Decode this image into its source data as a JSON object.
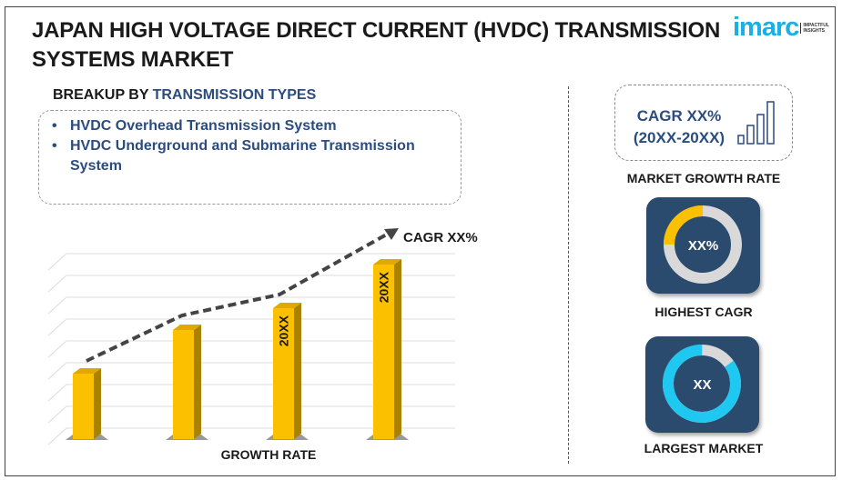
{
  "header": {
    "title": "JAPAN HIGH VOLTAGE DIRECT CURRENT (HVDC) TRANSMISSION SYSTEMS MARKET",
    "logo_word": "imarc",
    "logo_tagline": "IMPACTFUL INSIGHTS"
  },
  "breakup": {
    "prefix": "BREAKUP BY ",
    "highlight": "TRANSMISSION TYPES",
    "items": [
      "HVDC Overhead Transmission System",
      "HVDC Underground and Submarine Transmission System"
    ]
  },
  "right": {
    "cagr_line1": "CAGR XX%",
    "cagr_line2": "(20XX-20XX)",
    "market_growth_label": "MARKET GROWTH RATE",
    "highest_cagr_value": "XX%",
    "highest_cagr_label": "HIGHEST CAGR",
    "highest_cagr_fraction": 0.25,
    "largest_market_value": "XX",
    "largest_market_label": "LARGEST MARKET",
    "largest_market_fraction": 0.85
  },
  "colors": {
    "bar": "#fbc100",
    "bar_side": "#a88200",
    "navy": "#2a4a6e",
    "cyan": "#1ec8f0",
    "accent": "#2b4c7e"
  },
  "chart_data": {
    "type": "bar",
    "categories": [
      "",
      "",
      "",
      ""
    ],
    "values": [
      3,
      5,
      6,
      8
    ],
    "bar_labels": [
      "",
      "",
      "20XX",
      "20XX"
    ],
    "trend_annotation": "CAGR XX%",
    "xlabel": "GROWTH RATE",
    "ylabel": "",
    "ylim": [
      0,
      8.5
    ],
    "grid": true
  }
}
